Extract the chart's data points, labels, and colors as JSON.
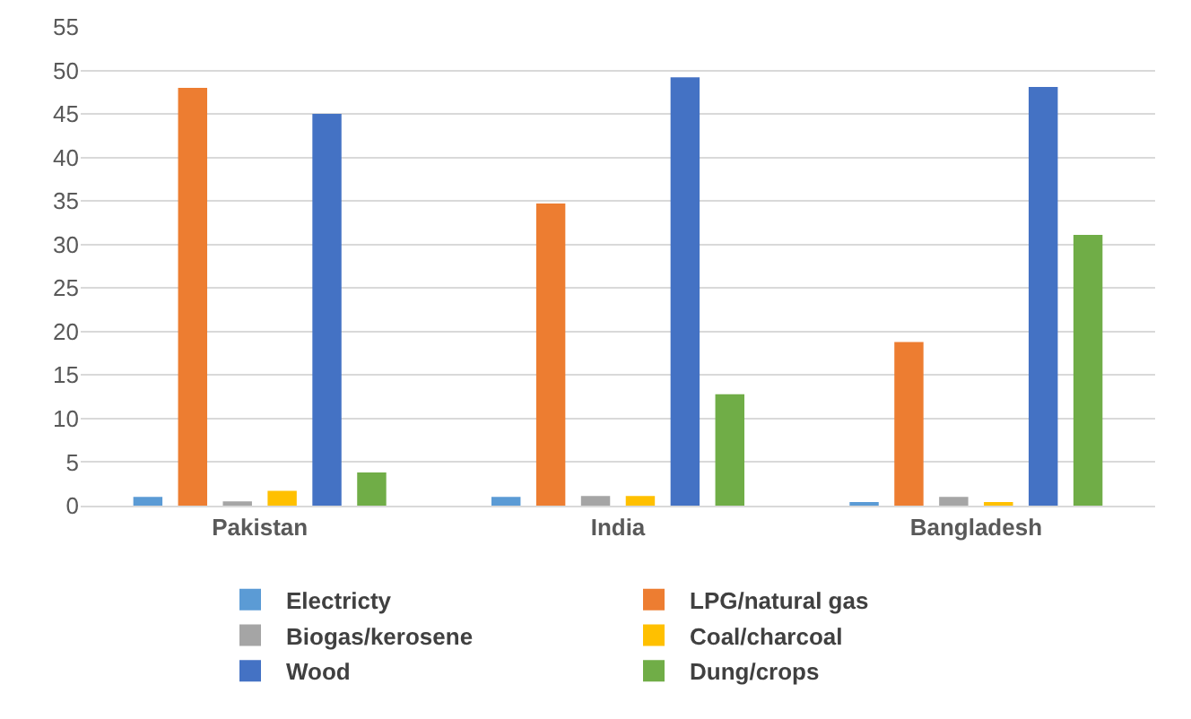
{
  "chart_data": {
    "type": "bar",
    "categories": [
      "Pakistan",
      "India",
      "Bangladesh"
    ],
    "series": [
      {
        "name": "Electricty",
        "color": "#5b9bd5",
        "values": [
          1.0,
          1.0,
          0.4
        ]
      },
      {
        "name": "LPG/natural gas",
        "color": "#ed7d31",
        "values": [
          48,
          34.7,
          18.8
        ]
      },
      {
        "name": "Biogas/kerosene",
        "color": "#a5a5a5",
        "values": [
          0.5,
          1.1,
          1.0
        ]
      },
      {
        "name": "Coal/charcoal",
        "color": "#ffc000",
        "values": [
          1.7,
          1.1,
          0.4
        ]
      },
      {
        "name": "Wood",
        "color": "#4472c4",
        "values": [
          45,
          49.2,
          48.1
        ]
      },
      {
        "name": "Dung/crops",
        "color": "#70ad47",
        "values": [
          3.8,
          12.8,
          31.1
        ]
      }
    ],
    "ylim": [
      0,
      55
    ],
    "yticks": [
      0,
      5,
      10,
      15,
      20,
      25,
      30,
      35,
      40,
      45,
      50,
      55
    ],
    "grid": "y",
    "legend": "bottom"
  }
}
